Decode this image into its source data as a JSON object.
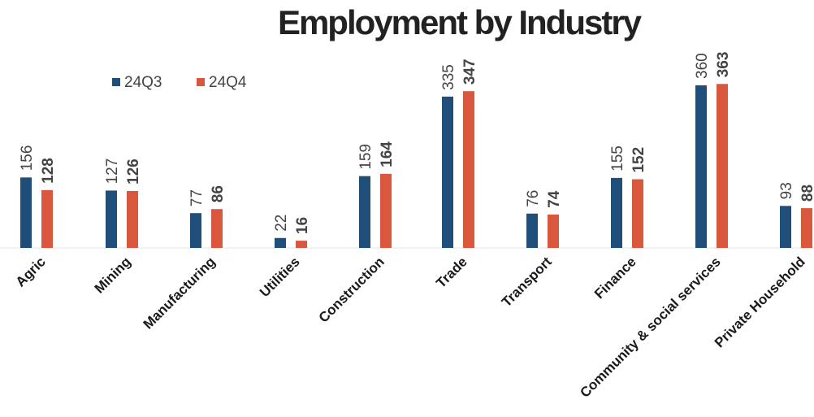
{
  "chart_data": {
    "type": "bar",
    "title": "Employment by Industry",
    "categories": [
      "Agric",
      "Mining",
      "Manufacturing",
      "Utilities",
      "Construction",
      "Trade",
      "Transport",
      "Finance",
      "Community & social services",
      "Private Household"
    ],
    "series": [
      {
        "name": "24Q3",
        "values": [
          156,
          127,
          77,
          22,
          159,
          335,
          76,
          155,
          360,
          93
        ],
        "color": "#1f4e79"
      },
      {
        "name": "24Q4",
        "values": [
          128,
          126,
          86,
          16,
          164,
          347,
          74,
          152,
          363,
          88
        ],
        "color": "#d9573d"
      }
    ],
    "xlabel": "",
    "ylabel": "",
    "ylim": [
      0,
      400
    ],
    "grid": false,
    "legend": "top-left"
  }
}
